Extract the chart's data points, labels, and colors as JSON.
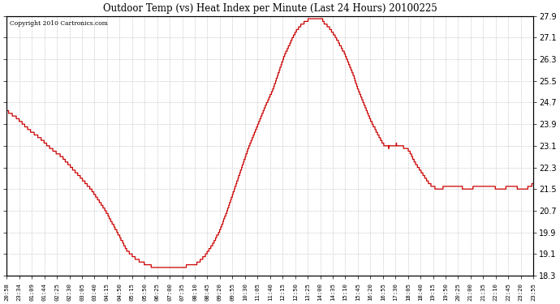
{
  "title": "Outdoor Temp (vs) Heat Index per Minute (Last 24 Hours) 20100225",
  "copyright_text": "Copyright 2010 Cartronics.com",
  "line_color": "#cc0000",
  "background_color": "#ffffff",
  "grid_color": "#bbbbbb",
  "ylim": [
    18.3,
    27.9
  ],
  "yticks": [
    18.3,
    19.1,
    19.9,
    20.7,
    21.5,
    22.3,
    23.1,
    23.9,
    24.7,
    25.5,
    26.3,
    27.1,
    27.9
  ],
  "xtick_labels": [
    "20:58",
    "23:34",
    "01:09",
    "01:44",
    "02:25",
    "02:30",
    "03:05",
    "03:40",
    "04:15",
    "04:50",
    "05:15",
    "05:50",
    "06:25",
    "07:00",
    "07:35",
    "08:10",
    "08:45",
    "09:20",
    "09:55",
    "10:30",
    "11:05",
    "11:40",
    "12:15",
    "12:50",
    "13:25",
    "14:00",
    "14:35",
    "15:10",
    "15:45",
    "16:20",
    "16:55",
    "17:30",
    "18:05",
    "18:40",
    "19:15",
    "19:50",
    "20:25",
    "21:00",
    "21:35",
    "22:10",
    "22:45",
    "23:20",
    "23:55"
  ],
  "key_points_x": [
    0,
    30,
    60,
    90,
    120,
    150,
    170,
    190,
    210,
    230,
    250,
    270,
    290,
    310,
    330,
    355,
    375,
    395,
    415,
    430,
    445,
    450,
    455,
    460,
    468,
    478,
    490,
    505,
    520,
    540,
    560,
    580,
    600,
    620,
    640,
    660,
    675,
    690,
    705,
    718,
    728,
    738,
    748,
    758,
    768,
    778,
    785,
    792,
    800,
    808,
    815,
    822,
    828,
    833,
    838,
    843,
    848,
    853,
    858,
    863,
    870,
    880,
    890,
    900,
    912,
    924,
    936,
    948,
    960,
    972,
    984,
    996,
    1008,
    1020,
    1032,
    1044,
    1055,
    1065,
    1075,
    1085,
    1095,
    1105,
    1115,
    1125,
    1135,
    1145,
    1155,
    1165,
    1175,
    1185,
    1200,
    1215,
    1230,
    1245,
    1260,
    1275,
    1290,
    1305,
    1320,
    1335,
    1350,
    1365,
    1380,
    1395,
    1410,
    1425,
    1440
  ],
  "key_points_y": [
    24.4,
    24.1,
    23.7,
    23.4,
    23.0,
    22.7,
    22.4,
    22.1,
    21.8,
    21.5,
    21.1,
    20.7,
    20.2,
    19.7,
    19.2,
    18.9,
    18.75,
    18.65,
    18.6,
    18.58,
    18.56,
    18.55,
    18.55,
    18.57,
    18.6,
    18.62,
    18.65,
    18.7,
    18.75,
    19.0,
    19.4,
    19.9,
    20.6,
    21.4,
    22.2,
    23.0,
    23.5,
    24.0,
    24.5,
    24.9,
    25.2,
    25.6,
    26.0,
    26.4,
    26.7,
    27.0,
    27.2,
    27.35,
    27.5,
    27.6,
    27.68,
    27.74,
    27.78,
    27.8,
    27.78,
    27.8,
    27.82,
    27.8,
    27.78,
    27.75,
    27.6,
    27.5,
    27.3,
    27.1,
    26.8,
    26.5,
    26.1,
    25.7,
    25.2,
    24.8,
    24.4,
    24.0,
    23.7,
    23.4,
    23.1,
    23.05,
    23.1,
    23.15,
    23.1,
    23.05,
    23.0,
    22.8,
    22.5,
    22.3,
    22.1,
    21.9,
    21.7,
    21.6,
    21.5,
    21.5,
    21.6,
    21.65,
    21.6,
    21.55,
    21.5,
    21.55,
    21.6,
    21.65,
    21.6,
    21.55,
    21.5,
    21.55,
    21.6,
    21.55,
    21.5,
    21.55,
    21.7
  ]
}
